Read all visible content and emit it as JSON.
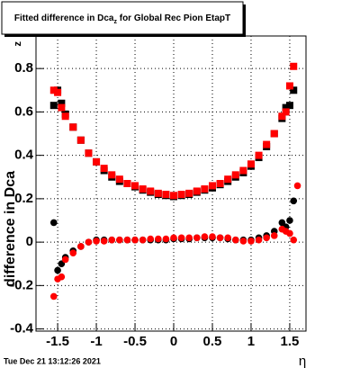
{
  "chart_data": {
    "type": "scatter",
    "title": [
      "Fitted difference in Dca",
      "z",
      " for Global Rec Pion EtapT"
    ],
    "y_label": [
      "difference in Dca",
      "z"
    ],
    "x_label": "η",
    "footer": "Tue Dec 21 13:12:26 2021",
    "xlim": [
      -1.78,
      1.71
    ],
    "ylim": [
      -0.41,
      0.95
    ],
    "xticks": [
      -1.5,
      -1,
      -0.5,
      0,
      0.5,
      1,
      1.5
    ],
    "yticks": [
      -0.4,
      -0.2,
      0,
      0.2,
      0.4,
      0.6,
      0.8
    ],
    "grid": true,
    "series": [
      {
        "marker": "square",
        "color": "#000000",
        "x": [
          -1.55,
          -1.5,
          -1.45,
          -1.4,
          -1.3,
          -1.2,
          -1.1,
          -1.0,
          -0.9,
          -0.8,
          -0.7,
          -0.6,
          -0.5,
          -0.4,
          -0.3,
          -0.2,
          -0.1,
          0,
          0.1,
          0.2,
          0.3,
          0.4,
          0.5,
          0.6,
          0.7,
          0.8,
          0.9,
          1.0,
          1.1,
          1.2,
          1.3,
          1.4,
          1.45,
          1.5,
          1.55
        ],
        "values": [
          0.63,
          0.7,
          0.64,
          0.59,
          0.53,
          0.47,
          0.41,
          0.37,
          0.33,
          0.3,
          0.28,
          0.27,
          0.255,
          0.24,
          0.23,
          0.22,
          0.215,
          0.21,
          0.215,
          0.22,
          0.23,
          0.24,
          0.25,
          0.265,
          0.28,
          0.3,
          0.32,
          0.35,
          0.39,
          0.44,
          0.5,
          0.57,
          0.62,
          0.63,
          0.7
        ]
      },
      {
        "marker": "square",
        "color": "#ff0000",
        "x": [
          -1.55,
          -1.5,
          -1.45,
          -1.4,
          -1.3,
          -1.2,
          -1.1,
          -1.0,
          -0.9,
          -0.8,
          -0.7,
          -0.6,
          -0.5,
          -0.4,
          -0.3,
          -0.2,
          -0.1,
          0,
          0.1,
          0.2,
          0.3,
          0.4,
          0.5,
          0.6,
          0.7,
          0.8,
          0.9,
          1.0,
          1.1,
          1.2,
          1.3,
          1.4,
          1.45,
          1.5,
          1.55
        ],
        "values": [
          0.7,
          0.69,
          0.62,
          0.58,
          0.53,
          0.47,
          0.41,
          0.37,
          0.34,
          0.31,
          0.29,
          0.27,
          0.26,
          0.245,
          0.235,
          0.225,
          0.22,
          0.215,
          0.22,
          0.225,
          0.235,
          0.245,
          0.26,
          0.27,
          0.29,
          0.31,
          0.33,
          0.36,
          0.4,
          0.45,
          0.5,
          0.58,
          0.6,
          0.72,
          0.81
        ]
      },
      {
        "marker": "circle",
        "color": "#000000",
        "x": [
          -1.55,
          -1.5,
          -1.45,
          -1.4,
          -1.3,
          -1.2,
          -1.1,
          -1.0,
          -0.9,
          -0.8,
          -0.7,
          -0.6,
          -0.5,
          -0.4,
          -0.3,
          -0.2,
          -0.1,
          0,
          0.1,
          0.2,
          0.3,
          0.4,
          0.5,
          0.6,
          0.7,
          0.8,
          0.9,
          1.0,
          1.1,
          1.2,
          1.3,
          1.4,
          1.45,
          1.5,
          1.55
        ],
        "values": [
          0.09,
          -0.13,
          -0.1,
          -0.07,
          -0.04,
          -0.02,
          0.0,
          0.01,
          0.01,
          0.01,
          0.01,
          0.01,
          0.01,
          0.01,
          0.01,
          0.01,
          0.01,
          0.015,
          0.015,
          0.015,
          0.02,
          0.02,
          0.02,
          0.02,
          0.015,
          0.01,
          0.01,
          0.01,
          0.02,
          0.03,
          0.05,
          0.09,
          0.07,
          0.1,
          0.19
        ]
      },
      {
        "marker": "circle",
        "color": "#ff0000",
        "x": [
          -1.55,
          -1.5,
          -1.45,
          -1.4,
          -1.3,
          -1.2,
          -1.1,
          -1.0,
          -0.9,
          -0.8,
          -0.7,
          -0.6,
          -0.5,
          -0.4,
          -0.3,
          -0.2,
          -0.1,
          0,
          0.1,
          0.2,
          0.3,
          0.4,
          0.5,
          0.6,
          0.7,
          0.8,
          0.9,
          1.0,
          1.1,
          1.2,
          1.3,
          1.4,
          1.45,
          1.5,
          1.55,
          1.6
        ],
        "values": [
          -0.25,
          -0.17,
          -0.16,
          -0.08,
          -0.05,
          -0.02,
          0.0,
          0.005,
          0.005,
          0.01,
          0.01,
          0.01,
          0.01,
          0.01,
          0.015,
          0.015,
          0.015,
          0.02,
          0.02,
          0.02,
          0.02,
          0.025,
          0.025,
          0.02,
          0.02,
          0.01,
          0.005,
          0.005,
          0.01,
          0.02,
          0.03,
          0.06,
          0.05,
          0.04,
          0.01,
          0.26
        ]
      }
    ]
  }
}
